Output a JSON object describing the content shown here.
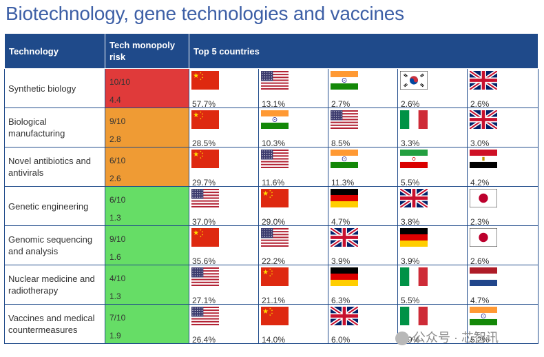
{
  "title": "Biotechnology, gene technologies and vaccines",
  "headers": {
    "technology": "Technology",
    "risk": "Tech monopoly risk",
    "countries": "Top 5 countries"
  },
  "colors": {
    "header_bg": "#1f4a8a",
    "title": "#3d5fa6",
    "risk_red": "#e03a3a",
    "risk_orange": "#ef9b34",
    "risk_green": "#66dd66"
  },
  "rows": [
    {
      "technology": "Synthetic biology",
      "risk_rating": "10/10",
      "risk_value": "4.4",
      "risk_color": "red",
      "countries": [
        {
          "flag": "china-flag",
          "share": "57.7%"
        },
        {
          "flag": "usa-flag",
          "share": "13.1%"
        },
        {
          "flag": "india-flag",
          "share": "2.7%"
        },
        {
          "flag": "south-korea-flag",
          "share": "2.6%"
        },
        {
          "flag": "uk-flag",
          "share": "2.6%"
        }
      ]
    },
    {
      "technology": "Biological manufacturing",
      "risk_rating": "9/10",
      "risk_value": "2.8",
      "risk_color": "orange",
      "countries": [
        {
          "flag": "china-flag",
          "share": "28.5%"
        },
        {
          "flag": "india-flag",
          "share": "10.3%"
        },
        {
          "flag": "usa-flag",
          "share": "8.5%"
        },
        {
          "flag": "italy-flag",
          "share": "3.3%"
        },
        {
          "flag": "uk-flag",
          "share": "3.0%"
        }
      ]
    },
    {
      "technology": "Novel antibiotics and antivirals",
      "risk_rating": "6/10",
      "risk_value": "2.6",
      "risk_color": "orange",
      "countries": [
        {
          "flag": "china-flag",
          "share": "29.7%"
        },
        {
          "flag": "usa-flag",
          "share": "11.6%"
        },
        {
          "flag": "india-flag",
          "share": "11.3%"
        },
        {
          "flag": "iran-flag",
          "share": "5.5%"
        },
        {
          "flag": "egypt-flag",
          "share": "4.2%"
        }
      ]
    },
    {
      "technology": "Genetic engineering",
      "risk_rating": "6/10",
      "risk_value": "1.3",
      "risk_color": "green",
      "countries": [
        {
          "flag": "usa-flag",
          "share": "37.0%"
        },
        {
          "flag": "china-flag",
          "share": "29.0%"
        },
        {
          "flag": "germany-flag",
          "share": "4.7%"
        },
        {
          "flag": "uk-flag",
          "share": "3.8%"
        },
        {
          "flag": "japan-flag",
          "share": "2.3%"
        }
      ]
    },
    {
      "technology": "Genomic sequencing and analysis",
      "risk_rating": "9/10",
      "risk_value": "1.6",
      "risk_color": "green",
      "countries": [
        {
          "flag": "china-flag",
          "share": "35.6%"
        },
        {
          "flag": "usa-flag",
          "share": "22.2%"
        },
        {
          "flag": "uk-flag",
          "share": "3.9%"
        },
        {
          "flag": "germany-flag",
          "share": "3.9%"
        },
        {
          "flag": "japan-flag",
          "share": "2.6%"
        }
      ]
    },
    {
      "technology": "Nuclear medicine and radiotherapy",
      "risk_rating": "4/10",
      "risk_value": "1.3",
      "risk_color": "green",
      "countries": [
        {
          "flag": "usa-flag",
          "share": "27.1%"
        },
        {
          "flag": "china-flag",
          "share": "21.1%"
        },
        {
          "flag": "germany-flag",
          "share": "6.3%"
        },
        {
          "flag": "italy-flag",
          "share": "5.5%"
        },
        {
          "flag": "netherlands-flag",
          "share": "4.7%"
        }
      ]
    },
    {
      "technology": "Vaccines and medical countermeasures",
      "risk_rating": "7/10",
      "risk_value": "1.9",
      "risk_color": "green",
      "countries": [
        {
          "flag": "usa-flag",
          "share": "26.4%"
        },
        {
          "flag": "china-flag",
          "share": "14.0%"
        },
        {
          "flag": "uk-flag",
          "share": "6.0%"
        },
        {
          "flag": "italy-flag",
          "share": "5.9%"
        },
        {
          "flag": "india-flag",
          "share": "5.2%"
        }
      ]
    }
  ],
  "watermark": "公众号 · 芯智讯"
}
